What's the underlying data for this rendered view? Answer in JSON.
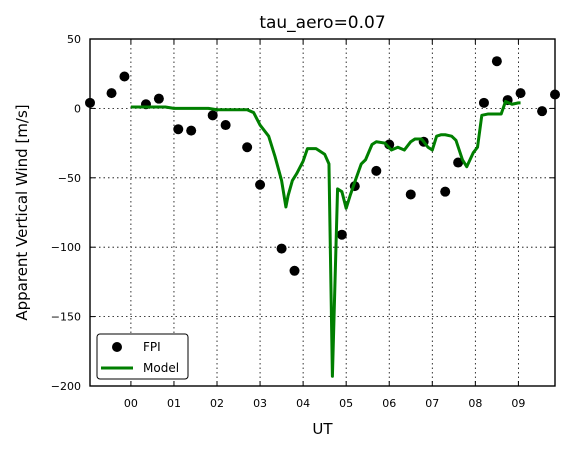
{
  "chart_data": {
    "type": "scatter",
    "title": "tau_aero=0.07",
    "xlabel": "UT",
    "ylabel": "Apparent Vertical Wind [m/s]",
    "xlim": [
      -0.95,
      9.85
    ],
    "ylim": [
      -200,
      50
    ],
    "x_ticks": [
      0,
      1,
      2,
      3,
      4,
      5,
      6,
      7,
      8,
      9
    ],
    "x_tick_labels": [
      "00",
      "01",
      "02",
      "03",
      "04",
      "05",
      "06",
      "07",
      "08",
      "09"
    ],
    "y_ticks": [
      50,
      0,
      -50,
      -100,
      -150,
      -200
    ],
    "y_tick_labels": [
      "50",
      "0",
      "−50",
      "−100",
      "−150",
      "−200"
    ],
    "grid": true,
    "legend_position": "lower-left",
    "series": [
      {
        "name": "FPI",
        "kind": "markers",
        "color": "#000000",
        "points": [
          [
            -0.95,
            4
          ],
          [
            -0.45,
            11
          ],
          [
            -0.15,
            23
          ],
          [
            0.35,
            3
          ],
          [
            0.65,
            7
          ],
          [
            1.1,
            -15
          ],
          [
            1.4,
            -16
          ],
          [
            1.9,
            -5
          ],
          [
            2.2,
            -12
          ],
          [
            2.7,
            -28
          ],
          [
            3.0,
            -55
          ],
          [
            3.5,
            -101
          ],
          [
            3.8,
            -117
          ],
          [
            4.9,
            -91
          ],
          [
            5.2,
            -56
          ],
          [
            5.7,
            -45
          ],
          [
            6.0,
            -26
          ],
          [
            6.5,
            -62
          ],
          [
            6.8,
            -24
          ],
          [
            7.3,
            -60
          ],
          [
            7.6,
            -39
          ],
          [
            8.2,
            4
          ],
          [
            8.5,
            34
          ],
          [
            8.75,
            6
          ],
          [
            9.05,
            11
          ],
          [
            9.55,
            -2
          ],
          [
            9.85,
            10
          ]
        ]
      },
      {
        "name": "Model",
        "kind": "line",
        "color": "#007f00",
        "points": [
          [
            0.0,
            1
          ],
          [
            0.3,
            1
          ],
          [
            0.8,
            1
          ],
          [
            1.0,
            0
          ],
          [
            1.2,
            0
          ],
          [
            1.5,
            0
          ],
          [
            1.8,
            0
          ],
          [
            2.0,
            -1
          ],
          [
            2.2,
            -1
          ],
          [
            2.5,
            -1
          ],
          [
            2.7,
            -1
          ],
          [
            2.85,
            -3
          ],
          [
            3.0,
            -12
          ],
          [
            3.2,
            -20
          ],
          [
            3.35,
            -35
          ],
          [
            3.5,
            -52
          ],
          [
            3.6,
            -71
          ],
          [
            3.65,
            -63
          ],
          [
            3.75,
            -52
          ],
          [
            3.85,
            -47
          ],
          [
            4.0,
            -38
          ],
          [
            4.1,
            -29
          ],
          [
            4.3,
            -29
          ],
          [
            4.5,
            -33
          ],
          [
            4.6,
            -40
          ],
          [
            4.68,
            -193
          ],
          [
            4.8,
            -58
          ],
          [
            4.9,
            -60
          ],
          [
            5.0,
            -72
          ],
          [
            5.1,
            -62
          ],
          [
            5.2,
            -53
          ],
          [
            5.35,
            -40
          ],
          [
            5.45,
            -37
          ],
          [
            5.6,
            -26
          ],
          [
            5.7,
            -24
          ],
          [
            5.9,
            -25
          ],
          [
            6.05,
            -30
          ],
          [
            6.2,
            -28
          ],
          [
            6.35,
            -30
          ],
          [
            6.5,
            -24
          ],
          [
            6.6,
            -22
          ],
          [
            6.75,
            -22
          ],
          [
            6.9,
            -28
          ],
          [
            7.0,
            -30
          ],
          [
            7.1,
            -20
          ],
          [
            7.2,
            -19
          ],
          [
            7.3,
            -19
          ],
          [
            7.45,
            -20
          ],
          [
            7.55,
            -23
          ],
          [
            7.7,
            -37
          ],
          [
            7.8,
            -42
          ],
          [
            7.95,
            -32
          ],
          [
            8.05,
            -28
          ],
          [
            8.15,
            -5
          ],
          [
            8.3,
            -4
          ],
          [
            8.5,
            -4
          ],
          [
            8.6,
            -4
          ],
          [
            8.7,
            5
          ],
          [
            8.85,
            3
          ],
          [
            9.0,
            4
          ],
          [
            9.05,
            4
          ]
        ]
      }
    ]
  }
}
